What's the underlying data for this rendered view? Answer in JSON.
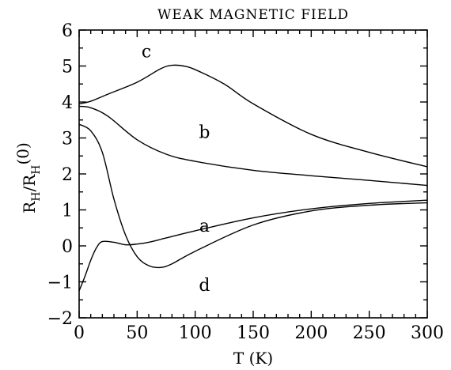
{
  "chart_data": {
    "type": "line",
    "title": "WEAK MAGNETIC FIELD",
    "xlabel": "T (K)",
    "ylabel": {
      "main": "R",
      "sub1": "H",
      "slash": "/R",
      "sub2": "H",
      "sup": "(0)"
    },
    "xlim": [
      0,
      300
    ],
    "ylim": [
      -2,
      6
    ],
    "xticks": [
      0,
      50,
      100,
      150,
      200,
      250,
      300
    ],
    "yticks": [
      -2,
      -1,
      0,
      1,
      2,
      3,
      4,
      5,
      6
    ],
    "grid": false,
    "series": [
      {
        "name": "a",
        "x": [
          0,
          5,
          10,
          15,
          20,
          30,
          40,
          50,
          60,
          75,
          100,
          150,
          200,
          250,
          300
        ],
        "y": [
          -1.25,
          -0.85,
          -0.4,
          -0.05,
          0.12,
          0.1,
          0.03,
          0.05,
          0.1,
          0.22,
          0.42,
          0.78,
          1.03,
          1.18,
          1.27
        ]
      },
      {
        "name": "b",
        "x": [
          0,
          10,
          25,
          50,
          75,
          100,
          150,
          200,
          250,
          300
        ],
        "y": [
          3.88,
          3.84,
          3.6,
          2.95,
          2.55,
          2.35,
          2.1,
          1.95,
          1.82,
          1.68
        ]
      },
      {
        "name": "c",
        "x": [
          0,
          10,
          25,
          50,
          70,
          80,
          90,
          100,
          125,
          150,
          200,
          250,
          300
        ],
        "y": [
          3.95,
          4.02,
          4.22,
          4.55,
          4.92,
          5.02,
          5.0,
          4.9,
          4.5,
          3.95,
          3.1,
          2.6,
          2.2
        ]
      },
      {
        "name": "d",
        "x": [
          0,
          10,
          20,
          30,
          40,
          50,
          60,
          70,
          80,
          100,
          150,
          200,
          250,
          300
        ],
        "y": [
          3.38,
          3.2,
          2.6,
          1.3,
          0.3,
          -0.3,
          -0.55,
          -0.6,
          -0.5,
          -0.15,
          0.58,
          0.97,
          1.13,
          1.2
        ]
      }
    ],
    "labels": [
      {
        "text": "a",
        "x": 108,
        "y": 0.55
      },
      {
        "text": "b",
        "x": 108,
        "y": 3.15
      },
      {
        "text": "c",
        "x": 58,
        "y": 5.4
      },
      {
        "text": "d",
        "x": 108,
        "y": -1.1
      }
    ]
  }
}
